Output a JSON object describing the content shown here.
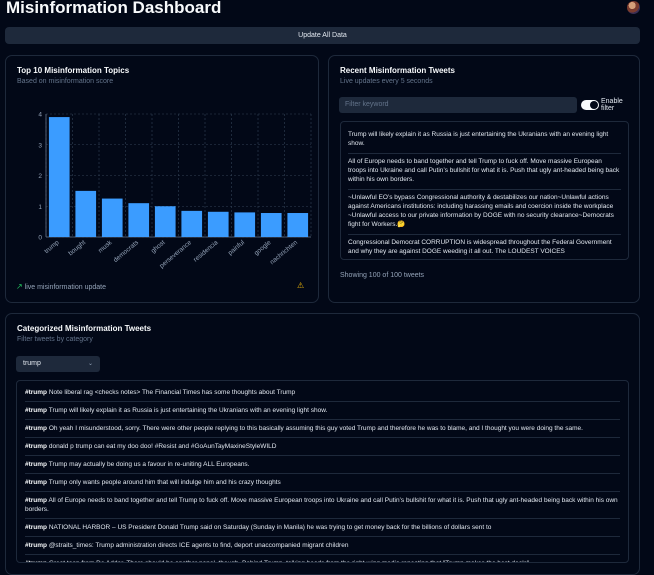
{
  "app": {
    "title": "Misinformation Dashboard",
    "update_label": "Update All Data"
  },
  "colors": {
    "background": "#020817",
    "bar": "#3b9cff",
    "card_border": "#1e293b"
  },
  "topics_card": {
    "title": "Top 10 Misinformation Topics",
    "subtitle": "Based on misinformation score",
    "footer": "live misinformation update",
    "footer_icon": "trending-up-icon",
    "warning_icon": "warning-icon"
  },
  "chart_data": {
    "type": "bar",
    "categories": [
      "trump",
      "bought",
      "musk",
      "democrats",
      "ghost",
      "perseverance",
      "residencia",
      "painful",
      "google",
      "nachrichten"
    ],
    "values": [
      3.9,
      1.5,
      1.25,
      1.1,
      1.0,
      0.85,
      0.82,
      0.8,
      0.78,
      0.78
    ],
    "ylim": [
      0,
      4
    ],
    "yticks": [
      0,
      1,
      2,
      3,
      4
    ],
    "grid": true,
    "xlabel": "",
    "ylabel": ""
  },
  "recent_card": {
    "title": "Recent Misinformation Tweets",
    "subtitle": "Live updates every 5 seconds",
    "filter_placeholder": "Filter keyword",
    "toggle_label_1": "Enable",
    "toggle_label_2": "filter",
    "tweets": [
      "Trump will likely explain it as Russia is just entertaining the Ukranians with an evening light show.",
      "All of Europe needs to band together and tell Trump to fuck off. Move massive European troops into Ukraine and call Putin’s bullshit for what it is. Push that ugly ant-headed being back within his own borders.",
      "~Unlawful EO’s bypass Congressional authority & destabilizes our nation~Unlawful actions against Americans institutions: including harassing emails and coercion inside the workplace ~Unlawful access to our private information by DOGE with no security clearance~Democrats fight for Workers.🤔",
      "Congressional Democrat CORRUPTION is widespread throughout the Federal Government and why they are against DOGE weeding it all out. The LOUDEST VOICES"
    ],
    "showing": "Showing 100 of 100 tweets"
  },
  "categorized_card": {
    "title": "Categorized Misinformation Tweets",
    "subtitle": "Filter tweets by category",
    "selected_category": "trump",
    "rows": [
      {
        "tag": "#trump",
        "text": "Note liberal rag <checks notes> The Financial Times has some thoughts about Trump"
      },
      {
        "tag": "#trump",
        "text": "Trump will likely explain it as Russia is just entertaining the Ukranians with an evening light show."
      },
      {
        "tag": "#trump",
        "text": "Oh yeah I misunderstood, sorry. There were other people replying to this basically assuming this guy voted Trump and therefore he was to blame, and I thought you were doing the same."
      },
      {
        "tag": "#trump",
        "text": "donald p trump can eat my doo doo! #Resist and #GoAunTayMaxineStyleWILD"
      },
      {
        "tag": "#trump",
        "text": "Trump may actually be doing us a favour in re-uniting ALL Europeans."
      },
      {
        "tag": "#trump",
        "text": "Trump only wants people around him that will indulge him and his crazy thoughts"
      },
      {
        "tag": "#trump",
        "text": "All of Europe needs to band together and tell Trump to fuck off. Move massive European troops into Ukraine and call Putin’s bullshit for what it is. Push that ugly ant-headed being back within his own borders."
      },
      {
        "tag": "#trump",
        "text": "NATIONAL HARBOR – US President Donald Trump said on Saturday (Sunday in Manila) he was trying to get money back for the billions of dollars sent to"
      },
      {
        "tag": "#trump",
        "text": "@straits_times: Trump administration directs ICE agents to find, deport unaccompanied migrant children"
      },
      {
        "tag": "#trump",
        "text": "Great toon from De Adder. There should be another panel, though. Behind Trump, talking heads from the right-wing media repeating that \"Trump makes the best deals\""
      }
    ]
  }
}
